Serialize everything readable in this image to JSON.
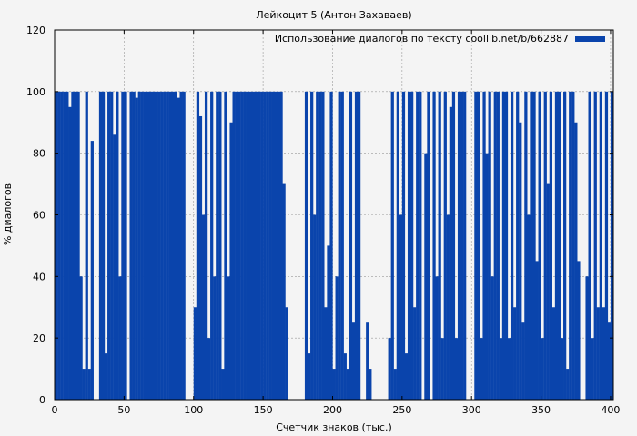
{
  "chart_data": {
    "type": "area",
    "title": "Лейкоцит 5 (Антон Захаваев)",
    "xlabel": "Счетчик знаков (тыс.)",
    "ylabel": "% диалогов",
    "xlim": [
      0,
      402
    ],
    "ylim": [
      0,
      120
    ],
    "xticks": [
      0,
      50,
      100,
      150,
      200,
      250,
      300,
      350,
      400
    ],
    "yticks": [
      0,
      20,
      40,
      60,
      80,
      100,
      120
    ],
    "grid": true,
    "legend_position": "top-right",
    "series": [
      {
        "name": "Использование диалогов по тексту coollib.net/b/662887",
        "color": "#0a44ac",
        "x": [
          0,
          2,
          4,
          6,
          8,
          10,
          12,
          14,
          16,
          18,
          20,
          22,
          24,
          26,
          28,
          30,
          32,
          34,
          36,
          38,
          40,
          42,
          44,
          46,
          48,
          50,
          52,
          54,
          56,
          58,
          60,
          62,
          64,
          66,
          68,
          70,
          72,
          74,
          76,
          78,
          80,
          82,
          84,
          86,
          88,
          90,
          92,
          94,
          96,
          98,
          100,
          102,
          104,
          106,
          108,
          110,
          112,
          114,
          116,
          118,
          120,
          122,
          124,
          126,
          128,
          130,
          132,
          134,
          136,
          138,
          140,
          142,
          144,
          146,
          148,
          150,
          152,
          154,
          156,
          158,
          160,
          162,
          164,
          166,
          168,
          170,
          172,
          174,
          176,
          178,
          180,
          182,
          184,
          186,
          188,
          190,
          192,
          194,
          196,
          198,
          200,
          202,
          204,
          206,
          208,
          210,
          212,
          214,
          216,
          218,
          220,
          222,
          224,
          226,
          228,
          230,
          232,
          234,
          236,
          238,
          240,
          242,
          244,
          246,
          248,
          250,
          252,
          254,
          256,
          258,
          260,
          262,
          264,
          266,
          268,
          270,
          272,
          274,
          276,
          278,
          280,
          282,
          284,
          286,
          288,
          290,
          292,
          294,
          296,
          298,
          300,
          302,
          304,
          306,
          308,
          310,
          312,
          314,
          316,
          318,
          320,
          322,
          324,
          326,
          328,
          330,
          332,
          334,
          336,
          338,
          340,
          342,
          344,
          346,
          348,
          350,
          352,
          354,
          356,
          358,
          360,
          362,
          364,
          366,
          368,
          370,
          372,
          374,
          376,
          378,
          380,
          382,
          384,
          386,
          388,
          390,
          392,
          394,
          396,
          398,
          400
        ],
        "values": [
          100,
          100,
          100,
          100,
          100,
          95,
          100,
          100,
          100,
          40,
          10,
          100,
          10,
          84,
          0,
          0,
          100,
          100,
          15,
          100,
          100,
          86,
          100,
          40,
          100,
          100,
          0,
          100,
          100,
          98,
          100,
          100,
          100,
          100,
          100,
          100,
          100,
          100,
          100,
          100,
          100,
          100,
          100,
          100,
          98,
          100,
          100,
          0,
          0,
          0,
          30,
          100,
          92,
          60,
          100,
          20,
          100,
          40,
          100,
          100,
          10,
          100,
          40,
          90,
          100,
          100,
          100,
          100,
          100,
          100,
          100,
          100,
          100,
          100,
          100,
          100,
          100,
          100,
          100,
          100,
          100,
          100,
          70,
          30,
          0,
          0,
          0,
          0,
          0,
          0,
          100,
          15,
          100,
          60,
          100,
          100,
          100,
          30,
          50,
          100,
          10,
          40,
          100,
          100,
          15,
          10,
          100,
          25,
          100,
          100,
          0,
          0,
          25,
          10,
          0,
          0,
          0,
          0,
          0,
          0,
          20,
          100,
          10,
          100,
          60,
          100,
          15,
          100,
          100,
          30,
          100,
          100,
          0,
          80,
          100,
          0,
          100,
          40,
          100,
          20,
          100,
          60,
          95,
          100,
          20,
          100,
          100,
          100,
          0,
          0,
          0,
          100,
          100,
          20,
          100,
          80,
          100,
          40,
          100,
          100,
          20,
          100,
          100,
          20,
          100,
          30,
          100,
          90,
          25,
          100,
          60,
          100,
          100,
          45,
          100,
          20,
          100,
          70,
          100,
          30,
          100,
          100,
          20,
          100,
          10,
          100,
          100,
          90,
          45,
          0,
          0,
          40,
          100,
          20,
          100,
          30,
          100,
          30,
          100,
          25,
          100
        ]
      }
    ]
  }
}
